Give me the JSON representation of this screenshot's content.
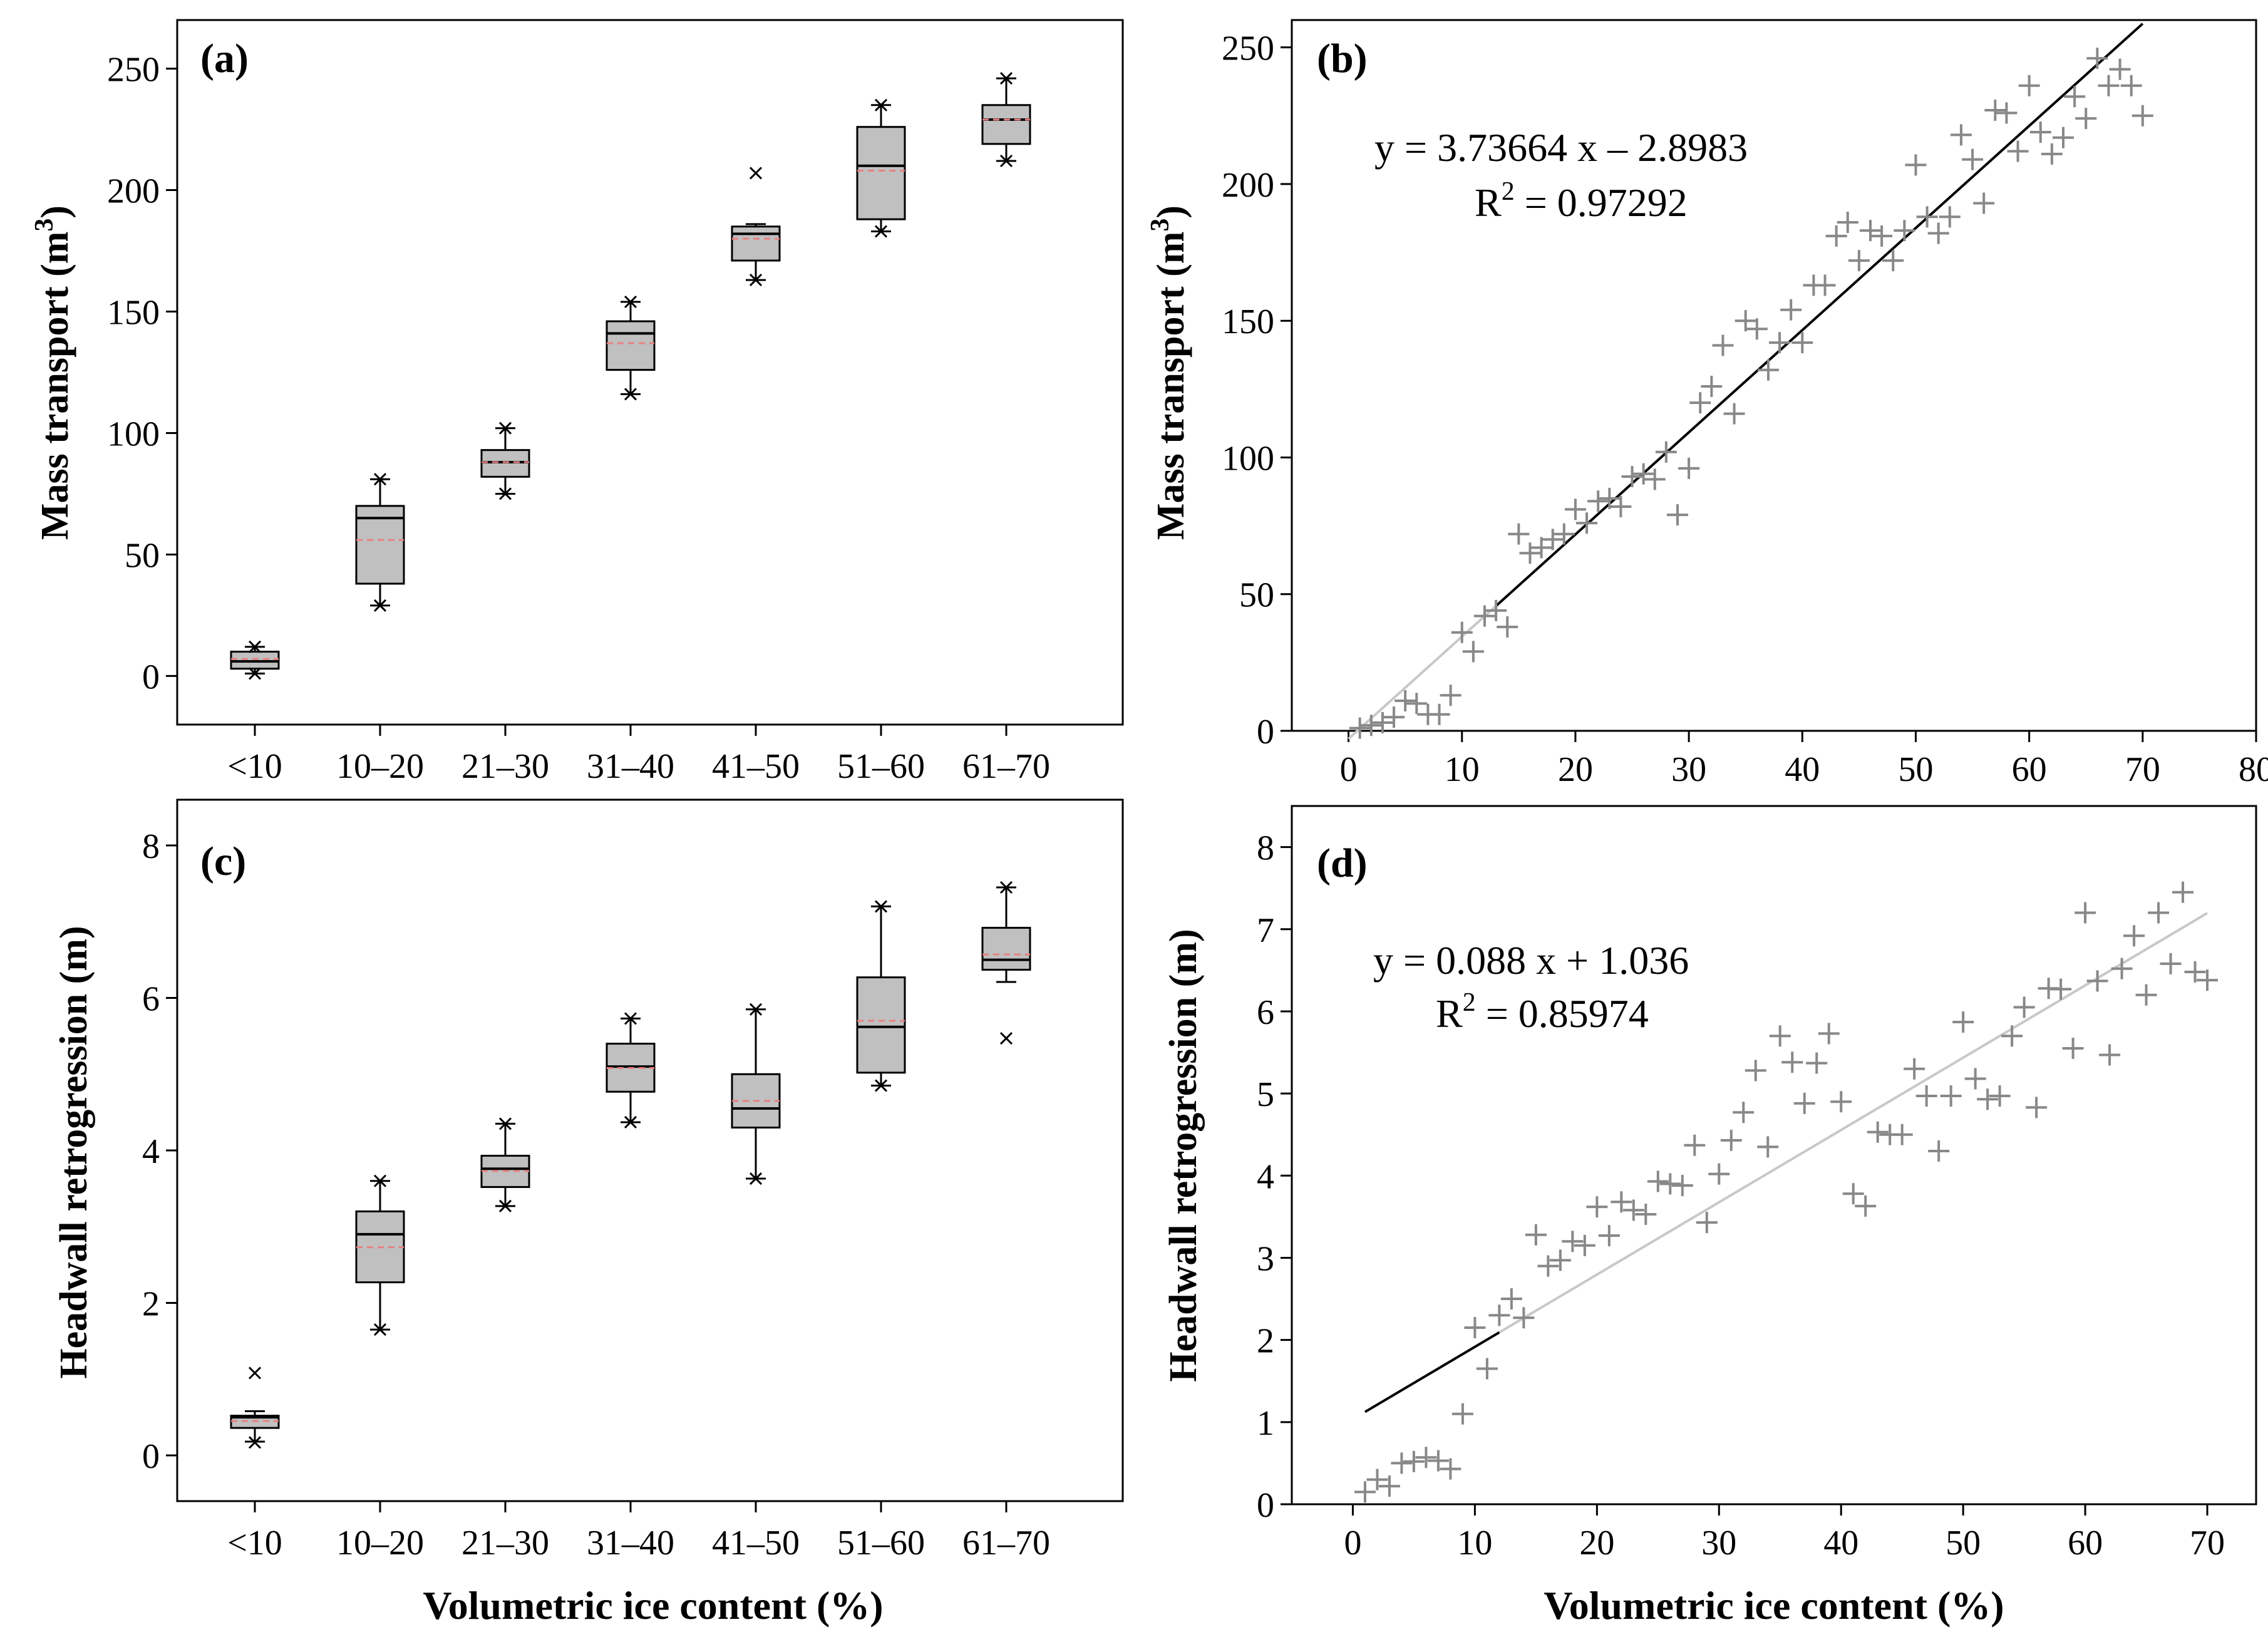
{
  "colors": {
    "box_fill": "#c0c0c0",
    "mean_line": "#e88080",
    "marker": "#888888",
    "fit_light": "#c8c8c8",
    "fit_dark": "#000000"
  },
  "chart_data": [
    {
      "id": "a",
      "panel_label": "(a)",
      "type": "box",
      "categories": [
        "<10",
        "10–20",
        "21–30",
        "31–40",
        "41–50",
        "51–60",
        "61–70"
      ],
      "ylabel": "Mass transport (m",
      "ylabel_sup": "3",
      "ylabel_close": ")",
      "ylim": [
        -20,
        270
      ],
      "yticks": [
        0,
        50,
        100,
        150,
        200,
        250
      ],
      "series": [
        {
          "q1": 3,
          "median": 6,
          "q3": 10,
          "mean": 7,
          "min": 1,
          "max": 12,
          "outliers": [
            1,
            12
          ]
        },
        {
          "q1": 38,
          "median": 65,
          "q3": 70,
          "mean": 56,
          "min": 29,
          "max": 81,
          "outliers": [
            29,
            81
          ]
        },
        {
          "q1": 82,
          "median": 88,
          "q3": 93,
          "mean": 88,
          "min": 75,
          "max": 102,
          "outliers": [
            75,
            102
          ]
        },
        {
          "q1": 126,
          "median": 141,
          "q3": 146,
          "mean": 137,
          "min": 116,
          "max": 154,
          "outliers": [
            116,
            154
          ]
        },
        {
          "q1": 171,
          "median": 182,
          "q3": 185,
          "mean": 180,
          "min": 163,
          "max": 186,
          "outliers": [
            163,
            207
          ]
        },
        {
          "q1": 188,
          "median": 210,
          "q3": 226,
          "mean": 208,
          "min": 183,
          "max": 235,
          "outliers": [
            183,
            235
          ]
        },
        {
          "q1": 219,
          "median": 229,
          "q3": 235,
          "mean": 229,
          "min": 212,
          "max": 246,
          "outliers": [
            212,
            246
          ]
        }
      ]
    },
    {
      "id": "b",
      "panel_label": "(b)",
      "type": "scatter",
      "ylabel": "Mass transport (m",
      "ylabel_sup": "3",
      "ylabel_close": ")",
      "xlim": [
        -5,
        80
      ],
      "ylim": [
        0,
        260
      ],
      "xticks": [
        0,
        10,
        20,
        30,
        40,
        50,
        60,
        70,
        80
      ],
      "yticks": [
        0,
        50,
        100,
        150,
        200,
        250
      ],
      "equation": "y = 3.73664 x – 2.8983",
      "r2_prefix": "R",
      "r2_sup": "2",
      "r2_value": " = 0.97292",
      "fit": {
        "slope": 3.73664,
        "intercept": -2.8983,
        "light_x": [
          0,
          13
        ],
        "dark_x": [
          13,
          70
        ]
      },
      "points": {
        "x": [
          1,
          2,
          3,
          4,
          5,
          6,
          7,
          8,
          9,
          10,
          11,
          12,
          13,
          14,
          15,
          16,
          17,
          18,
          19,
          20,
          21,
          22,
          23,
          24,
          25,
          26,
          27,
          28,
          29,
          30,
          31,
          32,
          33,
          34,
          35,
          36,
          37,
          38,
          39,
          40,
          41,
          42,
          43,
          44,
          45,
          46,
          47,
          48,
          49,
          50,
          51,
          52,
          53,
          54,
          55,
          56,
          57,
          58,
          59,
          60,
          61,
          62,
          63,
          64,
          65,
          66,
          67,
          68,
          69,
          70
        ],
        "y": [
          1,
          2,
          3,
          5,
          11,
          10,
          6,
          6,
          13,
          36,
          29,
          42,
          44,
          38,
          72,
          65,
          67,
          70,
          72,
          81,
          76,
          84,
          85,
          82,
          93,
          94,
          92,
          102,
          79,
          96,
          120,
          126,
          141,
          116,
          150,
          147,
          132,
          142,
          154,
          142,
          163,
          163,
          181,
          186,
          172,
          183,
          181,
          172,
          183,
          207,
          188,
          182,
          188,
          218,
          209,
          193,
          227,
          226,
          212,
          236,
          219,
          211,
          217,
          232,
          224,
          246,
          236,
          242,
          236,
          225
        ]
      }
    },
    {
      "id": "c",
      "panel_label": "(c)",
      "type": "box",
      "categories": [
        "<10",
        "10–20",
        "21–30",
        "31–40",
        "41–50",
        "51–60",
        "61–70"
      ],
      "xlabel": "Volumetric ice content (%)",
      "ylabel": "Headwall retrogression (m)",
      "ylim": [
        -0.6,
        8.6
      ],
      "yticks": [
        0,
        2,
        4,
        6,
        8
      ],
      "series": [
        {
          "q1": 0.36,
          "median": 0.5,
          "q3": 0.52,
          "mean": 0.45,
          "min": 0.18,
          "max": 0.58,
          "outliers": [
            0.17,
            1.08
          ]
        },
        {
          "q1": 2.27,
          "median": 2.9,
          "q3": 3.2,
          "mean": 2.73,
          "min": 1.65,
          "max": 3.6,
          "outliers": [
            1.65,
            3.6
          ]
        },
        {
          "q1": 3.52,
          "median": 3.76,
          "q3": 3.93,
          "mean": 3.73,
          "min": 3.27,
          "max": 4.35,
          "outliers": [
            3.27,
            4.35
          ]
        },
        {
          "q1": 4.77,
          "median": 5.1,
          "q3": 5.4,
          "mean": 5.08,
          "min": 4.37,
          "max": 5.73,
          "outliers": [
            4.37,
            5.73
          ]
        },
        {
          "q1": 4.3,
          "median": 4.55,
          "q3": 5.0,
          "mean": 4.65,
          "min": 3.63,
          "max": 5.85,
          "outliers": [
            3.63,
            5.85
          ]
        },
        {
          "q1": 5.02,
          "median": 5.62,
          "q3": 6.27,
          "mean": 5.7,
          "min": 4.85,
          "max": 7.2,
          "outliers": [
            4.85,
            7.2
          ]
        },
        {
          "q1": 6.37,
          "median": 6.5,
          "q3": 6.92,
          "mean": 6.57,
          "min": 6.21,
          "max": 7.45,
          "outliers": [
            5.47,
            7.45
          ]
        }
      ]
    },
    {
      "id": "d",
      "panel_label": "(d)",
      "type": "scatter",
      "xlabel": "Volumetric ice content (%)",
      "ylabel": "Headwall retrogression (m)",
      "xlim": [
        -5,
        74
      ],
      "ylim": [
        0,
        8.5
      ],
      "xticks": [
        0,
        10,
        20,
        30,
        40,
        50,
        60,
        70
      ],
      "yticks": [
        0,
        1,
        2,
        3,
        4,
        5,
        6,
        7,
        8
      ],
      "equation": "y = 0.088 x + 1.036",
      "r2_prefix": "R",
      "r2_sup": "2",
      "r2_value": " = 0.85974",
      "fit": {
        "slope": 0.088,
        "intercept": 1.036,
        "dark_x": [
          1,
          12
        ],
        "light_x": [
          12,
          70
        ]
      },
      "points": {
        "x": [
          1,
          2,
          3,
          4,
          5,
          6,
          7,
          8,
          9,
          10,
          11,
          12,
          13,
          14,
          15,
          16,
          17,
          18,
          19,
          20,
          21,
          22,
          23,
          24,
          25,
          26,
          27,
          28,
          29,
          30,
          31,
          32,
          33,
          34,
          35,
          36,
          37,
          38,
          39,
          40,
          41,
          42,
          43,
          44,
          45,
          46,
          47,
          48,
          49,
          50,
          51,
          52,
          53,
          54,
          55,
          56,
          57,
          58,
          59,
          60,
          61,
          62,
          63,
          64,
          65,
          66,
          67,
          68,
          69,
          70
        ],
        "y": [
          0.15,
          0.3,
          0.22,
          0.5,
          0.52,
          0.57,
          0.53,
          0.43,
          1.1,
          2.15,
          1.65,
          2.3,
          2.5,
          2.27,
          3.28,
          2.9,
          2.97,
          3.2,
          3.15,
          3.62,
          3.27,
          3.68,
          3.58,
          3.53,
          3.93,
          3.9,
          3.88,
          4.37,
          3.43,
          4.02,
          4.43,
          4.77,
          5.28,
          4.35,
          5.7,
          5.38,
          4.88,
          5.37,
          5.73,
          4.9,
          3.78,
          3.63,
          4.53,
          4.5,
          4.5,
          5.3,
          4.97,
          4.3,
          4.97,
          5.87,
          5.18,
          4.93,
          4.97,
          5.7,
          6.05,
          4.83,
          6.28,
          6.27,
          5.55,
          7.2,
          6.37,
          5.47,
          6.52,
          6.92,
          6.2,
          7.2,
          6.58,
          7.45,
          6.48,
          6.38
        ]
      }
    }
  ]
}
